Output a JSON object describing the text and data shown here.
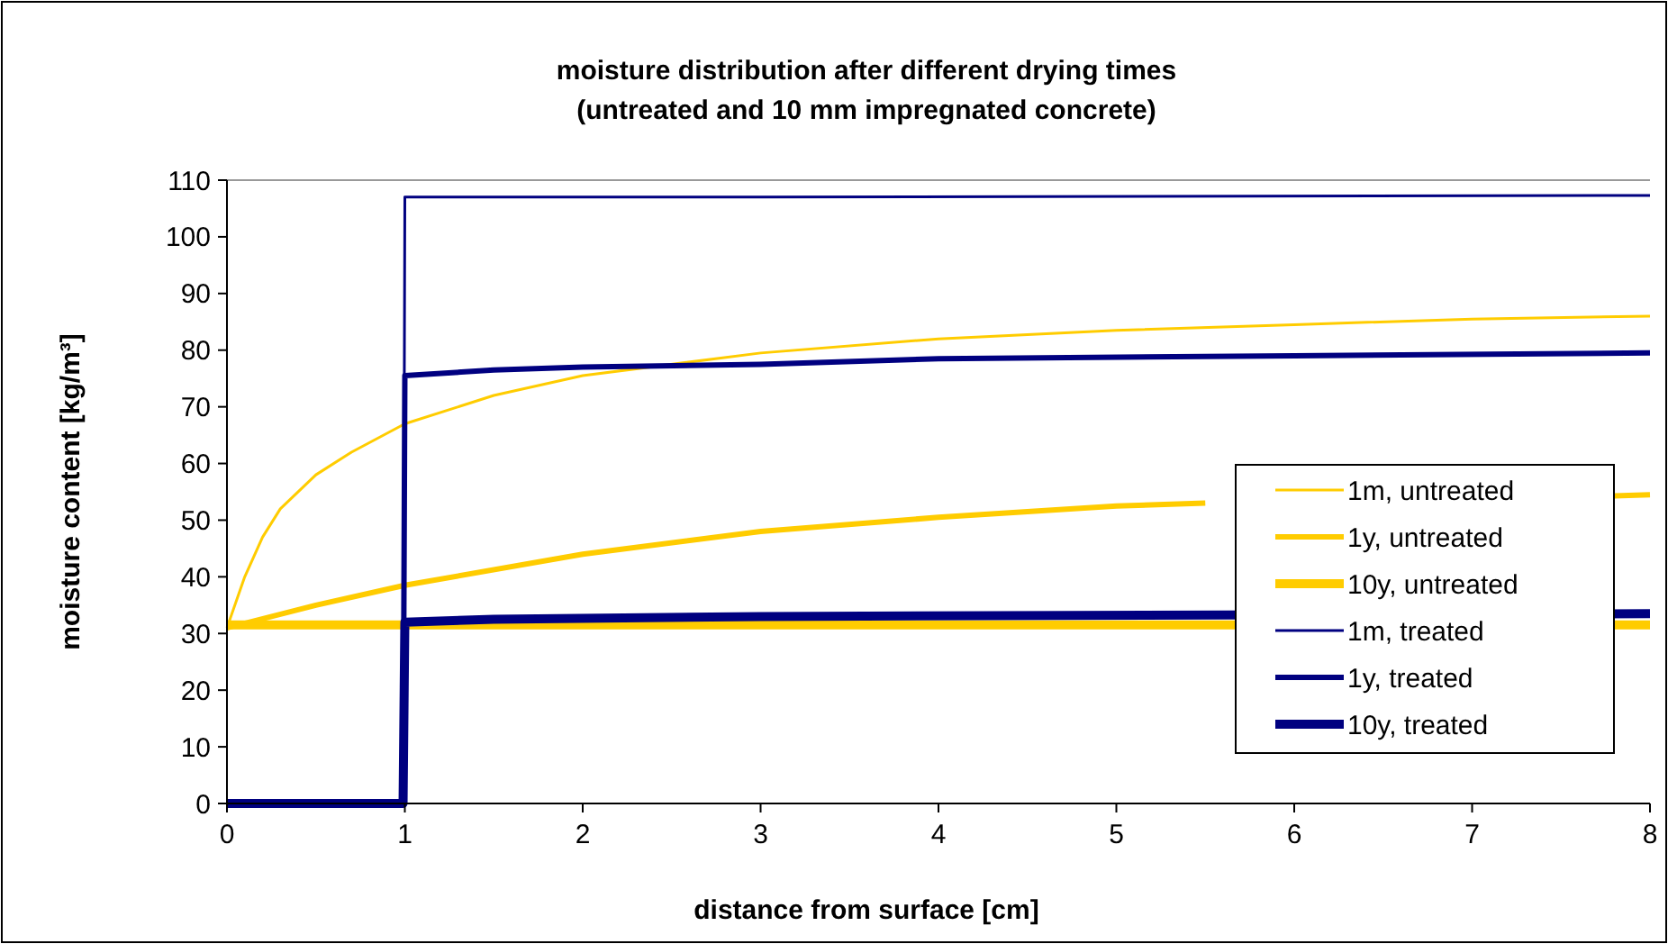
{
  "chart_data": {
    "type": "line",
    "title": "moisture distribution after different drying times\n(untreated and 10 mm impregnated concrete)",
    "xlabel": "distance from surface [cm]",
    "ylabel": "moisture content [kg/m³]",
    "xlim": [
      0,
      8
    ],
    "xticks": [
      0,
      1,
      2,
      3,
      4,
      5,
      6,
      7,
      8
    ],
    "ylim": [
      0,
      110
    ],
    "yticks": [
      0,
      10,
      20,
      30,
      40,
      50,
      60,
      70,
      80,
      90,
      100,
      110
    ],
    "grid": false,
    "legend": "right",
    "line_style": "solid",
    "series": [
      {
        "name": "1m, untreated",
        "color": "#ffcc00",
        "x": [
          0,
          0.1,
          0.2,
          0.3,
          0.5,
          0.7,
          1,
          1.5,
          2,
          3,
          4,
          5,
          6,
          7,
          8
        ],
        "values": [
          31,
          40,
          47,
          52,
          58,
          62,
          67,
          72,
          75.5,
          79.5,
          82,
          83.5,
          84.5,
          85.5,
          86
        ]
      },
      {
        "name": "1y, untreated",
        "color": "#ffcc00",
        "x": [
          0,
          0.5,
          1,
          2,
          3,
          4,
          5,
          5.5,
          6,
          7,
          7.8,
          8
        ],
        "values": [
          31,
          35,
          38.5,
          44,
          48,
          50.5,
          52.5,
          53,
          null,
          null,
          54.3,
          54.5
        ]
      },
      {
        "name": "10y, untreated",
        "color": "#ffcc00",
        "x": [
          0,
          8
        ],
        "values": [
          31.5,
          31.5
        ]
      },
      {
        "name": "1m, treated",
        "color": "#000080",
        "x": [
          0,
          0.99,
          1,
          3,
          8
        ],
        "values": [
          0,
          0,
          107,
          107,
          107.3
        ]
      },
      {
        "name": "1y, treated",
        "color": "#000080",
        "x": [
          0,
          0.99,
          1,
          1.5,
          2,
          3,
          4,
          6,
          8
        ],
        "values": [
          0,
          0,
          75.5,
          76.5,
          77,
          77.5,
          78.5,
          79,
          79.5
        ]
      },
      {
        "name": "10y, treated",
        "color": "#000080",
        "x": [
          0,
          0.99,
          1,
          1.5,
          3,
          8
        ],
        "values": [
          0,
          0,
          32,
          32.5,
          33,
          33.5
        ]
      }
    ]
  }
}
